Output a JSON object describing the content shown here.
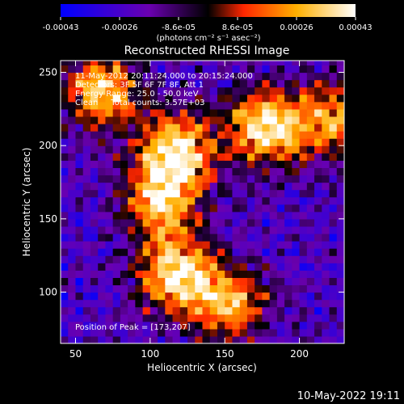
{
  "chart_data": {
    "type": "heatmap",
    "title": "Reconstructed RHESSI Image",
    "xlabel": "Heliocentric X (arcsec)",
    "ylabel": "Heliocentric Y (arcsec)",
    "xlim": [
      40,
      230
    ],
    "ylim": [
      65,
      258
    ],
    "x_ticks": [
      "50",
      "100",
      "150",
      "200"
    ],
    "x_tick_values": [
      50,
      100,
      150,
      200
    ],
    "y_ticks": [
      "100",
      "150",
      "200",
      "250"
    ],
    "y_tick_values": [
      100,
      150,
      200,
      250
    ],
    "colorbar": {
      "ticks": [
        "-0.00043",
        "-0.00026",
        "-8.6e-05",
        "8.6e-05",
        "0.00026",
        "0.00043"
      ],
      "units_label": "(photons cm⁻² s⁻¹ asec⁻²)",
      "range": [
        -0.00043,
        0.00043
      ],
      "colors": [
        "#0000ff",
        "#6a00b0",
        "#000000",
        "#ff2600",
        "#ffb000",
        "#ffffff"
      ]
    },
    "annotations": [
      "11-May-2012 20:11:24.000 to 20:15:24.000",
      "Detectors: 3F 5F 6F 7F 8F, Att 1",
      "Energy Range: 25.0 - 50.0 keV",
      "Clean     Total counts: 3.57E+03"
    ],
    "peak_label": "Position of Peak = [173,207]",
    "peak": [
      173,
      207
    ],
    "bright_regions": [
      {
        "x": 175,
        "y": 210,
        "intensity": 0.00043
      },
      {
        "x": 115,
        "y": 195,
        "intensity": 0.0004
      },
      {
        "x": 105,
        "y": 160,
        "intensity": 0.00034
      },
      {
        "x": 115,
        "y": 110,
        "intensity": 0.0004
      },
      {
        "x": 65,
        "y": 235,
        "intensity": 0.00034
      },
      {
        "x": 150,
        "y": 90,
        "intensity": 0.0003
      },
      {
        "x": 220,
        "y": 215,
        "intensity": 0.00026
      }
    ]
  },
  "footer_date": "10-May-2022 19:11"
}
